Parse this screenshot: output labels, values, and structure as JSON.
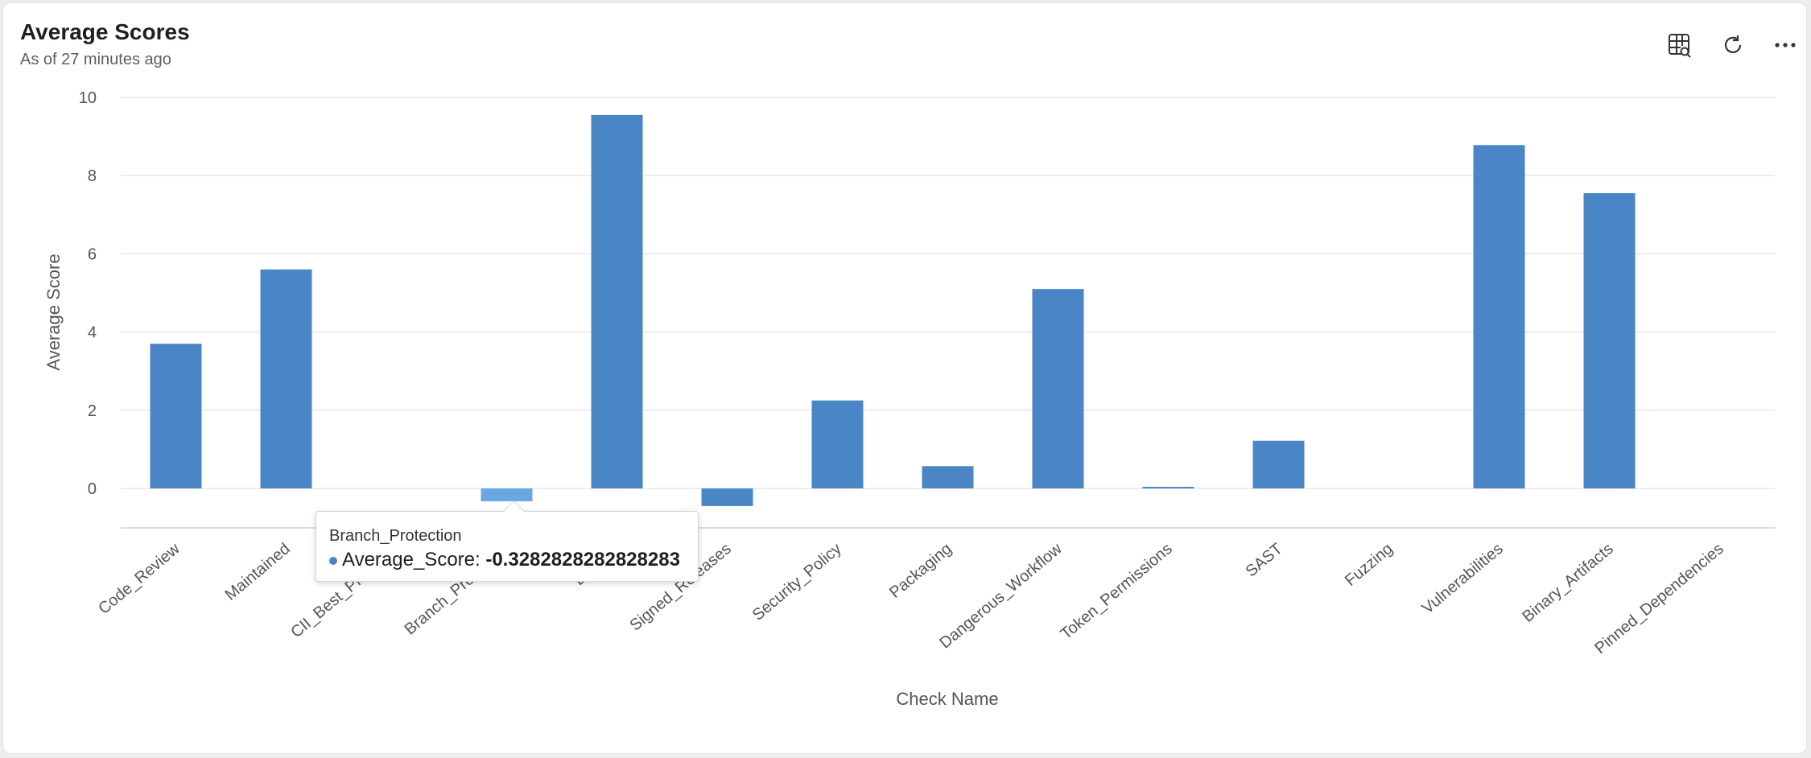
{
  "card": {
    "title": "Average Scores",
    "subtitle": "As of 27 minutes ago"
  },
  "toolbar": {
    "icons": [
      "table-search-icon",
      "refresh-icon",
      "more-options-icon"
    ]
  },
  "colors": {
    "bar": "#4a86c5",
    "bar_highlight": "#6aa6e0",
    "axis_text": "#555555",
    "grid": "#dcdcdc"
  },
  "chart_data": {
    "type": "bar",
    "xlabel": "Check Name",
    "ylabel": "Average Score",
    "ylim": [
      -1,
      10
    ],
    "yticks": [
      "0",
      "2",
      "4",
      "6",
      "8",
      "10"
    ],
    "grid": true,
    "categories": [
      "Code_Review",
      "Maintained",
      "CII_Best_Practices",
      "Branch_Protection",
      "License",
      "Signed_Releases",
      "Security_Policy",
      "Packaging",
      "Dangerous_Workflow",
      "Token_Permissions",
      "SAST",
      "Fuzzing",
      "Vulnerabilities",
      "Binary_Artifacts",
      "Pinned_Dependencies"
    ],
    "series": [
      {
        "name": "Average_Score",
        "values": [
          3.7,
          5.6,
          0,
          -0.3282828282828283,
          9.55,
          -0.45,
          2.25,
          0.57,
          5.1,
          0.04,
          1.22,
          0,
          8.78,
          7.55,
          0
        ]
      }
    ],
    "highlighted_index": 3
  },
  "tooltip": {
    "category": "Branch_Protection",
    "series_label": "Average_Score: ",
    "value": "-0.3282828282828283"
  }
}
